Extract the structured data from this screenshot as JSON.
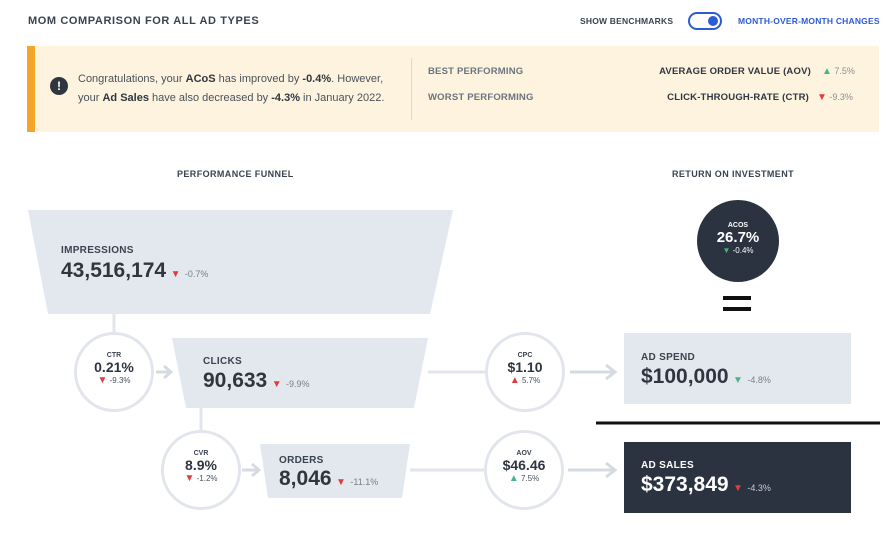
{
  "header": {
    "title": "MOM COMPARISON FOR ALL AD TYPES",
    "show_benchmarks": "SHOW BENCHMARKS",
    "mom_changes": "MONTH-OVER-MONTH CHANGES",
    "toggle_on": true
  },
  "alert": {
    "line1_pre": "Congratulations, your ",
    "line1_bold": "ACoS",
    "line1_mid": " has improved by ",
    "line1_val": "-0.4%",
    "line1_post": ". However,",
    "line2_pre": "your ",
    "line2_bold": "Ad Sales",
    "line2_mid": " have also decreased by ",
    "line2_val": "-4.3%",
    "line2_post": " in January 2022.",
    "best_label": "BEST PERFORMING",
    "best_metric": "AVERAGE ORDER VALUE (AOV)",
    "best_change": "7.5%",
    "worst_label": "WORST PERFORMING",
    "worst_metric": "CLICK-THROUGH-RATE (CTR)",
    "worst_change": "-9.3%"
  },
  "funnel": {
    "title": "PERFORMANCE FUNNEL",
    "impressions": {
      "label": "IMPRESSIONS",
      "value": "43,516,174",
      "change": "-0.7%"
    },
    "clicks": {
      "label": "CLICKS",
      "value": "90,633",
      "change": "-9.9%"
    },
    "orders": {
      "label": "ORDERS",
      "value": "8,046",
      "change": "-11.1%"
    },
    "ctr": {
      "label": "CTR",
      "value": "0.21%",
      "change": "-9.3%"
    },
    "cvr": {
      "label": "CVR",
      "value": "8.9%",
      "change": "-1.2%"
    },
    "cpc": {
      "label": "CPC",
      "value": "$1.10",
      "change": "5.7%"
    },
    "aov": {
      "label": "AOV",
      "value": "$46.46",
      "change": "7.5%"
    }
  },
  "roi": {
    "title": "RETURN ON INVESTMENT",
    "acos": {
      "label": "ACOS",
      "value": "26.7%",
      "change": "-0.4%"
    },
    "equals": "=",
    "ad_spend": {
      "label": "AD SPEND",
      "value": "$100,000",
      "change": "-4.8%"
    },
    "ad_sales": {
      "label": "AD SALES",
      "value": "$373,849",
      "change": "-4.3%"
    }
  },
  "icons": {
    "up": "▲",
    "down": "▼",
    "alert": "!",
    "arrow": "arrow-right-icon"
  },
  "colors": {
    "accent_blue": "#2c5bd6",
    "alert_bg": "#fdf3de",
    "alert_border": "#f4a62a",
    "positive": "#4cb38a",
    "negative": "#e23b3b",
    "box_light": "#e3e7ee",
    "box_dark": "#2b3340"
  }
}
